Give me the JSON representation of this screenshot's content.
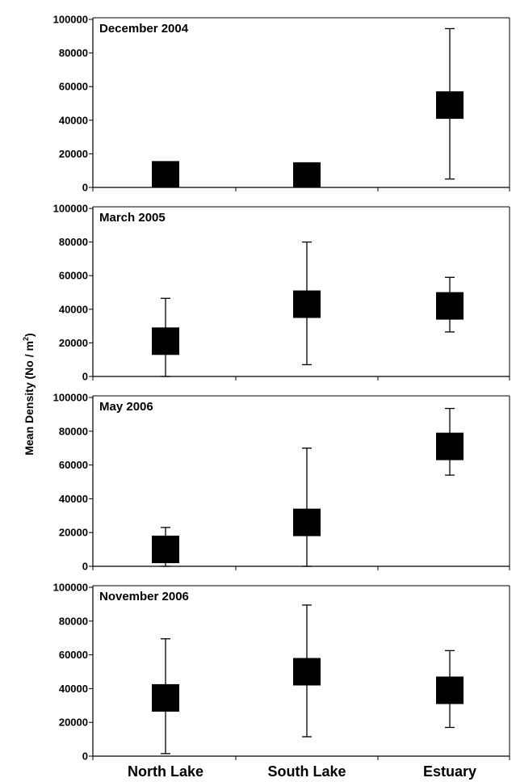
{
  "chart_data": {
    "type": "scatter",
    "ylabel_prefix": "Mean Density (No / m",
    "ylabel_sup": "2",
    "ylabel_suffix": ")",
    "categories": [
      "North Lake",
      "South Lake",
      "Estuary"
    ],
    "ylim": [
      0,
      100000
    ],
    "yticks": [
      0,
      20000,
      40000,
      60000,
      80000,
      100000
    ],
    "marker_color": "#000000",
    "panels": [
      {
        "title": "December 2004",
        "mean": [
          7500,
          6800,
          49000
        ],
        "lower": [
          null,
          null,
          5000
        ],
        "upper": [
          null,
          null,
          94500
        ]
      },
      {
        "title": "March 2005",
        "mean": [
          21000,
          43000,
          42000
        ],
        "lower": [
          0,
          7000,
          26500
        ],
        "upper": [
          46500,
          80000,
          59000
        ]
      },
      {
        "title": "May 2006",
        "mean": [
          10000,
          26000,
          71000
        ],
        "lower": [
          0,
          0,
          54000
        ],
        "upper": [
          23000,
          70000,
          93500
        ]
      },
      {
        "title": "November 2006",
        "mean": [
          34500,
          50000,
          39000
        ],
        "lower": [
          1500,
          11500,
          17000
        ],
        "upper": [
          69500,
          89500,
          62500
        ]
      }
    ]
  }
}
